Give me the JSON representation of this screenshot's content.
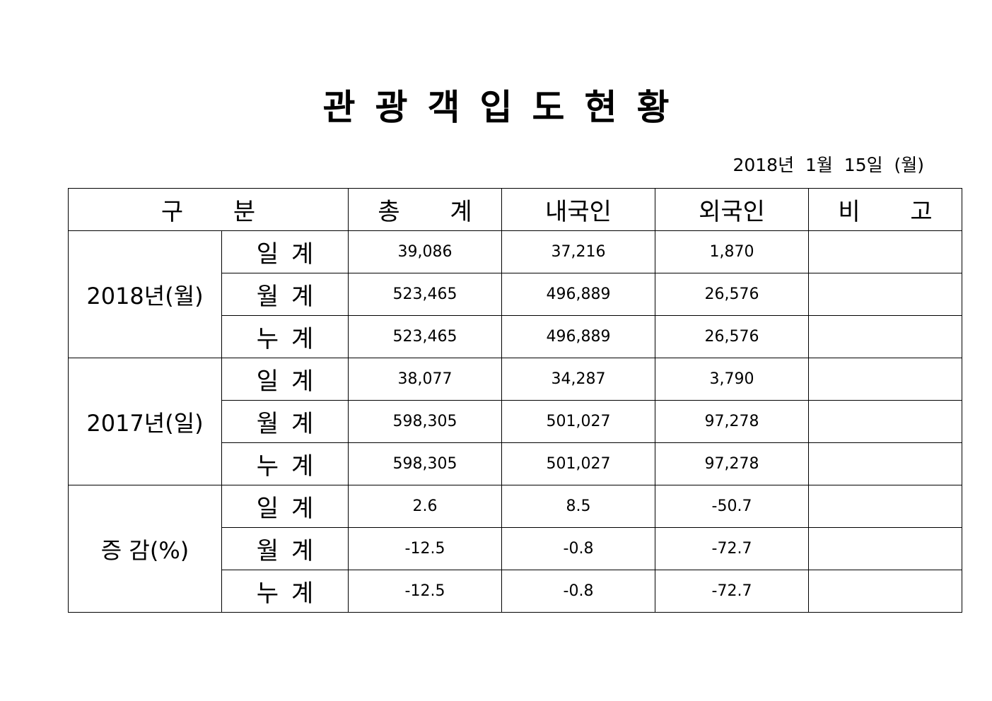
{
  "title": "관광객입도현황",
  "date": "2018년  1월  15일  (월)",
  "header": {
    "category": "구  분",
    "total": "총  계",
    "domestic": "내국인",
    "foreign": "외국인",
    "remarks": "비  고"
  },
  "groups": [
    {
      "label": "2018년(월)",
      "rows": [
        {
          "sub": "일계",
          "total": "39,086",
          "domestic": "37,216",
          "foreign": "1,870",
          "remarks": ""
        },
        {
          "sub": "월계",
          "total": "523,465",
          "domestic": "496,889",
          "foreign": "26,576",
          "remarks": ""
        },
        {
          "sub": "누계",
          "total": "523,465",
          "domestic": "496,889",
          "foreign": "26,576",
          "remarks": ""
        }
      ]
    },
    {
      "label": "2017년(일)",
      "rows": [
        {
          "sub": "일계",
          "total": "38,077",
          "domestic": "34,287",
          "foreign": "3,790",
          "remarks": ""
        },
        {
          "sub": "월계",
          "total": "598,305",
          "domestic": "501,027",
          "foreign": "97,278",
          "remarks": ""
        },
        {
          "sub": "누계",
          "total": "598,305",
          "domestic": "501,027",
          "foreign": "97,278",
          "remarks": ""
        }
      ]
    },
    {
      "label": "증 감(%)",
      "rows": [
        {
          "sub": "일계",
          "total": "2.6",
          "domestic": "8.5",
          "foreign": "-50.7",
          "remarks": ""
        },
        {
          "sub": "월계",
          "total": "-12.5",
          "domestic": "-0.8",
          "foreign": "-72.7",
          "remarks": ""
        },
        {
          "sub": "누계",
          "total": "-12.5",
          "domestic": "-0.8",
          "foreign": "-72.7",
          "remarks": ""
        }
      ]
    }
  ]
}
